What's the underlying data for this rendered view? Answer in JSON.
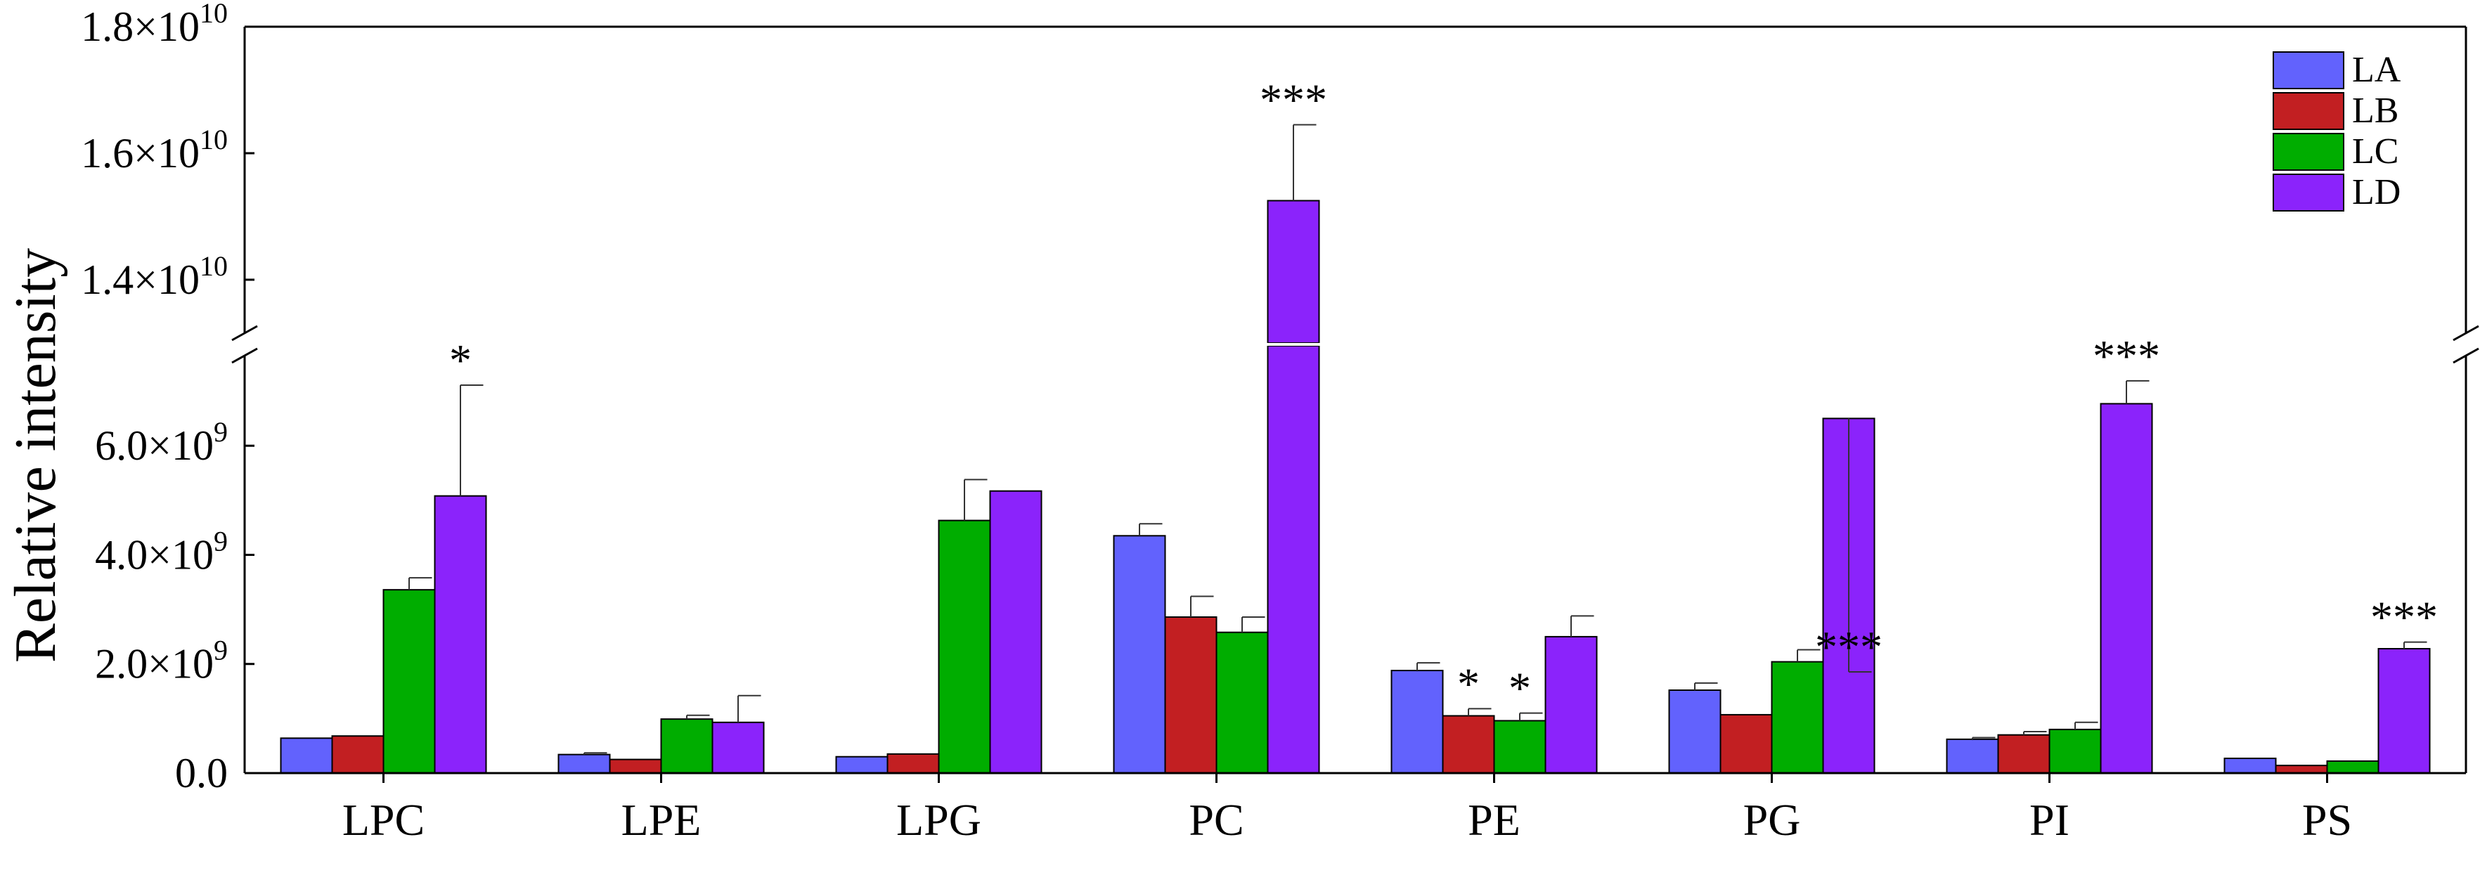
{
  "chart_data": {
    "type": "bar",
    "ylabel": "Relative intensity",
    "categories": [
      "LPC",
      "LPE",
      "LPG",
      "PC",
      "PE",
      "PG",
      "PI",
      "PS"
    ],
    "axis_break": {
      "lower_ylim": [
        0,
        7600000000.0
      ],
      "upper_ylim": [
        13200000000.0,
        18000000000.0
      ]
    },
    "lower_ticks": [
      {
        "value": 0,
        "mantissa": "0.0",
        "exponent": ""
      },
      {
        "value": 2000000000.0,
        "mantissa": "2.0×10",
        "exponent": "9"
      },
      {
        "value": 4000000000.0,
        "mantissa": "4.0×10",
        "exponent": "9"
      },
      {
        "value": 6000000000.0,
        "mantissa": "6.0×10",
        "exponent": "9"
      }
    ],
    "upper_ticks": [
      {
        "value": 14000000000.0,
        "mantissa": "1.4×10",
        "exponent": "10"
      },
      {
        "value": 16000000000.0,
        "mantissa": "1.6×10",
        "exponent": "10"
      },
      {
        "value": 18000000000.0,
        "mantissa": "1.8×10",
        "exponent": "10"
      }
    ],
    "series": [
      {
        "name": "LA",
        "color": "#6262fd",
        "values": [
          640000000.0,
          340000000.0,
          300000000.0,
          4350000000.0,
          1880000000.0,
          1520000000.0,
          620000000.0,
          270000000.0
        ],
        "errors": [
          0,
          30000000.0,
          0,
          220000000.0,
          140000000.0,
          130000000.0,
          30000000.0,
          0
        ],
        "sig": [
          "",
          "",
          "",
          "",
          "",
          "",
          "",
          ""
        ]
      },
      {
        "name": "LB",
        "color": "#c21f22",
        "values": [
          680000000.0,
          250000000.0,
          350000000.0,
          2860000000.0,
          1050000000.0,
          1070000000.0,
          700000000.0,
          140000000.0
        ],
        "errors": [
          0,
          0,
          0,
          380000000.0,
          130000000.0,
          0,
          60000000.0,
          0
        ],
        "sig": [
          "",
          "",
          "",
          "",
          "*",
          "",
          "",
          ""
        ]
      },
      {
        "name": "LC",
        "color": "#00ad00",
        "values": [
          3360000000.0,
          990000000.0,
          4630000000.0,
          2580000000.0,
          960000000.0,
          2040000000.0,
          800000000.0,
          220000000.0
        ],
        "errors": [
          220000000.0,
          70000000.0,
          750000000.0,
          280000000.0,
          140000000.0,
          220000000.0,
          130000000.0,
          0
        ],
        "sig": [
          "",
          "",
          "",
          "",
          "*",
          "",
          "",
          ""
        ]
      },
      {
        "name": "LD",
        "color": "#8b23fb",
        "values": [
          5080000000.0,
          930000000.0,
          5170000000.0,
          15250000000.0,
          2500000000.0,
          6500000000.0,
          6770000000.0,
          2280000000.0
        ],
        "errors": [
          2030000000.0,
          490000000.0,
          0,
          1200000000.0,
          380000000.0,
          1300000000.0,
          420000000.0,
          120000000.0
        ],
        "sig": [
          "*",
          "",
          "",
          "***",
          "",
          "***",
          "***",
          "***"
        ]
      }
    ],
    "legend": {
      "position": "top-right",
      "labels": [
        "LA",
        "LB",
        "LC",
        "LD"
      ]
    },
    "grid": false
  }
}
